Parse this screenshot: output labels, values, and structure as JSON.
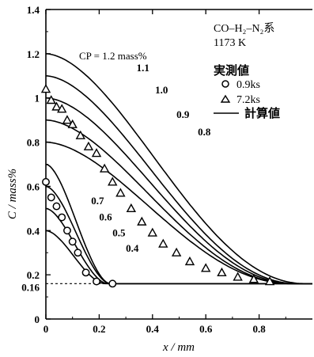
{
  "chart_data": {
    "type": "line",
    "xlabel": "x / mm",
    "ylabel": "C / mass%",
    "xlim": [
      0,
      1.0
    ],
    "ylim": [
      0,
      1.4
    ],
    "xticks": [
      0,
      0.2,
      0.4,
      0.6,
      0.8
    ],
    "xtick_labels": [
      "0",
      "0.2",
      "0.4",
      "0.6",
      "0.8"
    ],
    "yticks": [
      0,
      0.2,
      0.4,
      0.6,
      0.8,
      1.0,
      1.2,
      1.4
    ],
    "ytick_labels": [
      "0",
      "0.2",
      "0.4",
      "0.6",
      "0.8",
      "1",
      "1.2",
      "1.4"
    ],
    "extra_ytick": {
      "value": 0.16,
      "label": "0.16",
      "line": "dashed"
    },
    "grid": false,
    "legend": {
      "position": "top-right",
      "system_label": "CO–H₂–N₂系",
      "temperature_label": "1173 K",
      "measured_label": "実測値",
      "entries": [
        {
          "marker": "circle",
          "label": "0.9ks"
        },
        {
          "marker": "triangle",
          "label": "7.2ks"
        },
        {
          "marker": "line",
          "label": "計算値"
        }
      ]
    },
    "cp_title": "CP = 1.2 mass%",
    "baseline": 0.16,
    "series": [
      {
        "label": "1.2",
        "c0": 1.2,
        "length": 0.97,
        "shape": 2.0
      },
      {
        "label": "1.1",
        "c0": 1.1,
        "length": 0.94,
        "shape": 2.0
      },
      {
        "label": "1.0",
        "c0": 1.0,
        "length": 0.93,
        "shape": 2.0
      },
      {
        "label": "0.9",
        "c0": 0.9,
        "length": 0.92,
        "shape": 2.0
      },
      {
        "label": "0.8",
        "c0": 0.8,
        "length": 0.92,
        "shape": 2.0
      },
      {
        "label": "0.7",
        "c0": 0.7,
        "length": 0.24,
        "shape": 1.7
      },
      {
        "label": "0.6",
        "c0": 0.6,
        "length": 0.24,
        "shape": 1.7
      },
      {
        "label": "0.5",
        "c0": 0.5,
        "length": 0.23,
        "shape": 1.7
      },
      {
        "label": "0.4",
        "c0": 0.4,
        "length": 0.22,
        "shape": 1.7
      }
    ],
    "curve_labels": [
      {
        "text": "1.1",
        "x": 0.34,
        "y": 1.12
      },
      {
        "text": "1.0",
        "x": 0.41,
        "y": 1.02
      },
      {
        "text": "0.9",
        "x": 0.49,
        "y": 0.91
      },
      {
        "text": "0.8",
        "x": 0.57,
        "y": 0.83
      },
      {
        "text": "0.7",
        "x": 0.17,
        "y": 0.52
      },
      {
        "text": "0.6",
        "x": 0.2,
        "y": 0.445
      },
      {
        "text": "0.5",
        "x": 0.25,
        "y": 0.375
      },
      {
        "text": "0.4",
        "x": 0.3,
        "y": 0.305
      }
    ],
    "measured_0_9ks": [
      [
        0.0,
        0.62
      ],
      [
        0.02,
        0.55
      ],
      [
        0.04,
        0.51
      ],
      [
        0.06,
        0.46
      ],
      [
        0.08,
        0.4
      ],
      [
        0.1,
        0.35
      ],
      [
        0.12,
        0.3
      ],
      [
        0.15,
        0.21
      ],
      [
        0.19,
        0.17
      ],
      [
        0.25,
        0.16
      ]
    ],
    "measured_7_2ks": [
      [
        0.0,
        1.04
      ],
      [
        0.02,
        0.99
      ],
      [
        0.04,
        0.96
      ],
      [
        0.06,
        0.95
      ],
      [
        0.08,
        0.9
      ],
      [
        0.1,
        0.88
      ],
      [
        0.13,
        0.83
      ],
      [
        0.16,
        0.78
      ],
      [
        0.19,
        0.75
      ],
      [
        0.22,
        0.68
      ],
      [
        0.25,
        0.62
      ],
      [
        0.28,
        0.57
      ],
      [
        0.32,
        0.5
      ],
      [
        0.36,
        0.44
      ],
      [
        0.4,
        0.39
      ],
      [
        0.44,
        0.34
      ],
      [
        0.49,
        0.3
      ],
      [
        0.54,
        0.26
      ],
      [
        0.6,
        0.23
      ],
      [
        0.66,
        0.21
      ],
      [
        0.72,
        0.19
      ],
      [
        0.78,
        0.18
      ],
      [
        0.84,
        0.17
      ]
    ]
  }
}
